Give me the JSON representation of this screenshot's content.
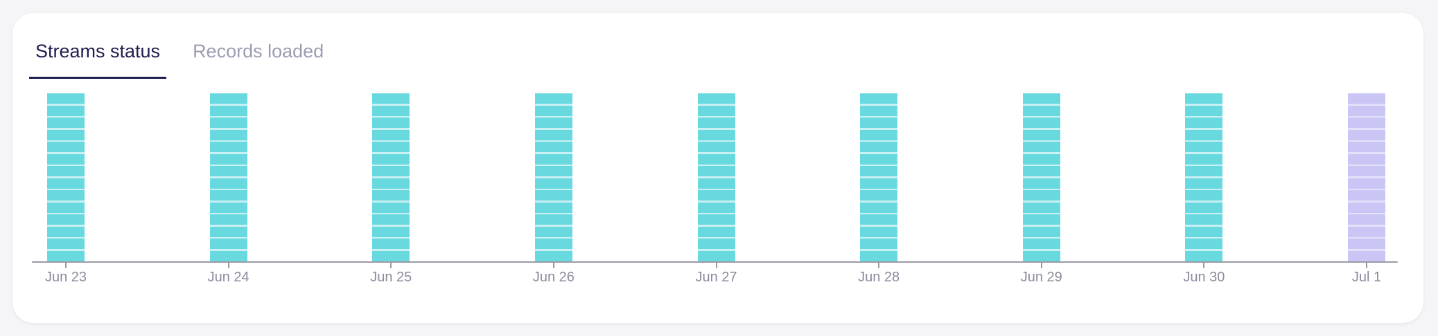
{
  "page": {
    "background": "#F5F5F8"
  },
  "card": {
    "background": "#FFFFFF"
  },
  "tabs": [
    {
      "label": "Streams status",
      "active": true
    },
    {
      "label": "Records loaded",
      "active": false
    }
  ],
  "colors": {
    "tab_active": "#1F1E4E",
    "tab_inactive": "#9B9DB1",
    "teal": "#68DADF",
    "teal_stripe": "#C9F0F2",
    "lavender": "#C9C6F5",
    "lavender_stripe": "#E3E1FA",
    "axis": "#9B99A6",
    "label": "#8C8A9E"
  },
  "chart_data": {
    "type": "bar",
    "title": "Streams status",
    "categories": [
      "Jun 23",
      "Jun 24",
      "Jun 25",
      "Jun 26",
      "Jun 27",
      "Jun 28",
      "Jun 29",
      "Jun 30",
      "Jul 1"
    ],
    "values": [
      14,
      14,
      14,
      14,
      14,
      14,
      14,
      14,
      14
    ],
    "segments_per_bar": 14,
    "bars": [
      {
        "date": "Jun 23",
        "segments": 14,
        "color": "teal"
      },
      {
        "date": "Jun 24",
        "segments": 14,
        "color": "teal"
      },
      {
        "date": "Jun 25",
        "segments": 14,
        "color": "teal"
      },
      {
        "date": "Jun 26",
        "segments": 14,
        "color": "teal"
      },
      {
        "date": "Jun 27",
        "segments": 14,
        "color": "teal"
      },
      {
        "date": "Jun 28",
        "segments": 14,
        "color": "teal"
      },
      {
        "date": "Jun 29",
        "segments": 14,
        "color": "teal"
      },
      {
        "date": "Jun 30",
        "segments": 14,
        "color": "teal"
      },
      {
        "date": "Jul 1",
        "segments": 14,
        "color": "lavender"
      }
    ],
    "xlabel": "",
    "ylabel": "",
    "y_axis": "none",
    "gridlines": false,
    "legend": "none"
  }
}
